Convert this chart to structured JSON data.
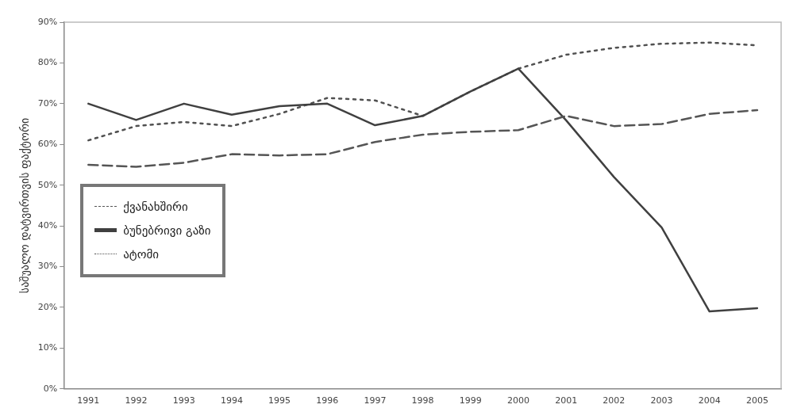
{
  "chart_data": {
    "type": "line",
    "ylabel": "საშუალო დატვირთვის ფაქტორი",
    "categories": [
      "1991",
      "1992",
      "1993",
      "1994",
      "1995",
      "1996",
      "1997",
      "1998",
      "1999",
      "2000",
      "2001",
      "2002",
      "2003",
      "2004",
      "2005"
    ],
    "series": [
      {
        "name": "ქვანახშირი",
        "color": "#555555",
        "line_style": "dashed",
        "values": [
          55,
          54.5,
          55.5,
          57.6,
          57.3,
          57.6,
          60.6,
          62.4,
          63.1,
          63.5,
          67,
          64.5,
          65,
          67.5,
          68.4
        ]
      },
      {
        "name": "ბუნებრივი გაზი",
        "color": "#404040",
        "line_style": "solid",
        "values": [
          70,
          66,
          70,
          67.3,
          69.4,
          70,
          64.7,
          67,
          73,
          78.6,
          65.9,
          52,
          39.6,
          19,
          19.8
        ]
      },
      {
        "name": "ატომი",
        "color": "#505050",
        "line_style": "dotted",
        "values": [
          61,
          64.5,
          65.5,
          64.5,
          67.5,
          71.4,
          70.8,
          67,
          73,
          78.6,
          82,
          83.7,
          84.7,
          85,
          84.3
        ]
      }
    ],
    "ylim": [
      0,
      90
    ],
    "yticks": [
      {
        "value": 0,
        "label": "0%"
      },
      {
        "value": 10,
        "label": "10%"
      },
      {
        "value": 20,
        "label": "20%"
      },
      {
        "value": 30,
        "label": "30%"
      },
      {
        "value": 40,
        "label": "40%"
      },
      {
        "value": 50,
        "label": "50%"
      },
      {
        "value": 60,
        "label": "60%"
      },
      {
        "value": 70,
        "label": "70%"
      },
      {
        "value": 80,
        "label": "80%"
      },
      {
        "value": 90,
        "label": "90%"
      }
    ],
    "grid": false,
    "legend": "left",
    "marker": "none"
  }
}
